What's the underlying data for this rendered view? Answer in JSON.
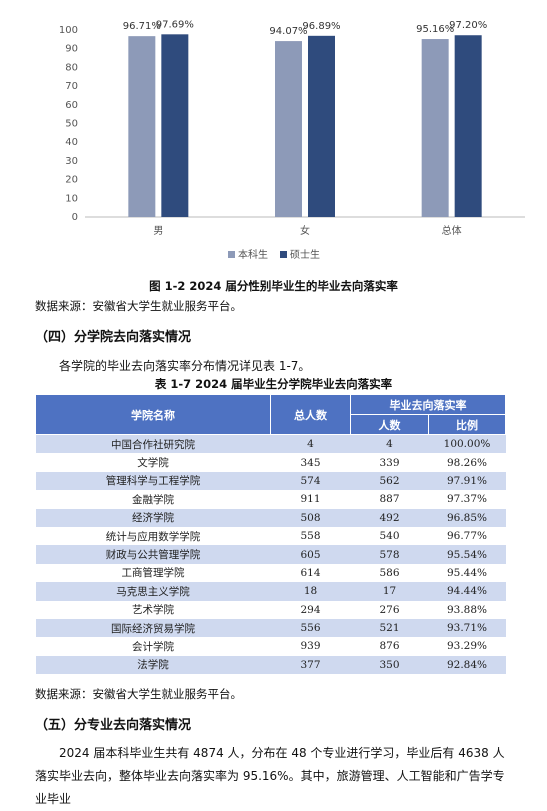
{
  "figure": {
    "type": "bar",
    "categories": [
      "男",
      "女",
      "总体"
    ],
    "series": [
      {
        "name": "本科生",
        "color": "#8d9ab8",
        "values": [
          96.71,
          94.07,
          95.16
        ],
        "value_labels": [
          "96.71%",
          "94.07%",
          "95.16%"
        ]
      },
      {
        "name": "硕士生",
        "color": "#2f4b7d",
        "values": [
          97.69,
          96.89,
          97.2
        ],
        "value_labels": [
          "97.69%",
          "96.89%",
          "97.20%"
        ]
      }
    ],
    "ylim": [
      0,
      100
    ],
    "yticks": [
      0,
      10,
      20,
      30,
      40,
      50,
      60,
      70,
      80,
      90,
      100
    ],
    "caption": "图 1-2   2024 届分性别毕业生的毕业去向落实率"
  },
  "source_1": "数据来源：安徽省大学生就业服务平台。",
  "heading_4": "（四）分学院去向落实情况",
  "intro": "各学院的毕业去向落实率分布情况详见表 1-7。",
  "table": {
    "caption": "表 1-7   2024 届毕业生分学院毕业去向落实率",
    "headers": [
      "学院名称",
      "总人数",
      "毕业去向落实率"
    ],
    "subheaders": [
      "人数",
      "比例"
    ],
    "rows": [
      [
        "中国合作社研究院",
        4,
        4,
        "100.00%"
      ],
      [
        "文学院",
        345,
        339,
        "98.26%"
      ],
      [
        "管理科学与工程学院",
        574,
        562,
        "97.91%"
      ],
      [
        "金融学院",
        911,
        887,
        "97.37%"
      ],
      [
        "经济学院",
        508,
        492,
        "96.85%"
      ],
      [
        "统计与应用数学学院",
        558,
        540,
        "96.77%"
      ],
      [
        "财政与公共管理学院",
        605,
        578,
        "95.54%"
      ],
      [
        "工商管理学院",
        614,
        586,
        "95.44%"
      ],
      [
        "马克思主义学院",
        18,
        17,
        "94.44%"
      ],
      [
        "艺术学院",
        294,
        276,
        "93.88%"
      ],
      [
        "国际经济贸易学院",
        556,
        521,
        "93.71%"
      ],
      [
        "会计学院",
        939,
        876,
        "93.29%"
      ],
      [
        "法学院",
        377,
        350,
        "92.84%"
      ]
    ]
  },
  "source_2": "数据来源：安徽省大学生就业服务平台。",
  "heading_5": "（五）分专业去向落实情况",
  "paragraph": "2024 届本科毕业生共有 4874 人，分布在 48 个专业进行学习，毕业后有 4638 人落实毕业去向，整体毕业去向落实率为 95.16%。其中，旅游管理、人工智能和广告学专业毕业"
}
